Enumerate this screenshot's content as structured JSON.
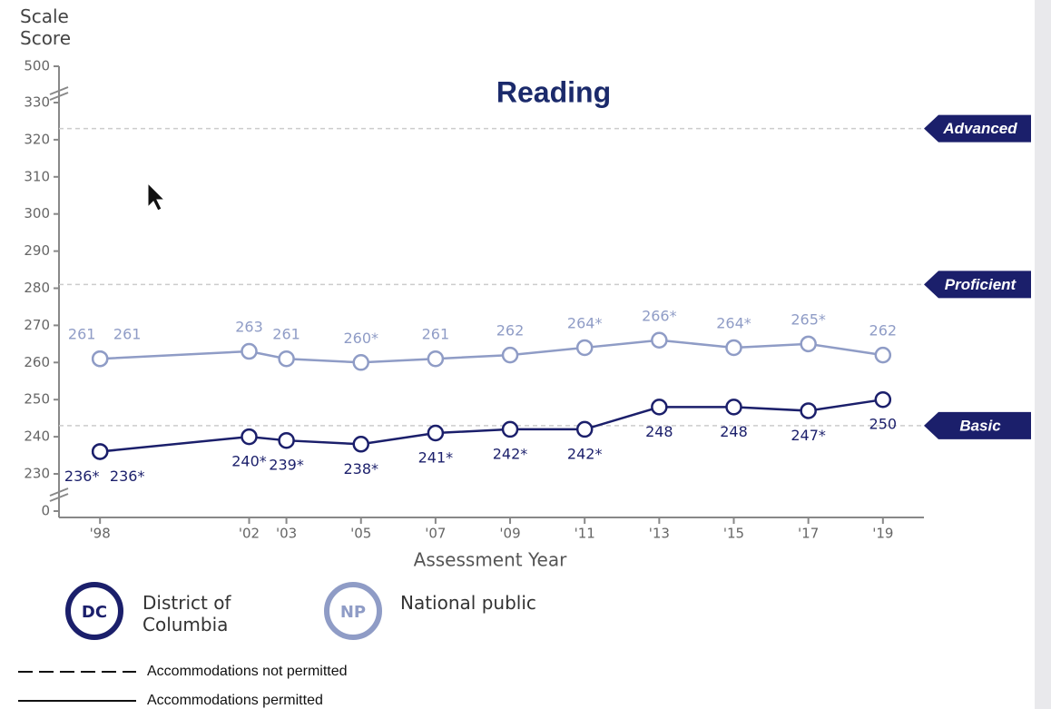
{
  "chart_data": {
    "type": "line",
    "title": "Reading",
    "y_label": "Scale Score",
    "x_label": "Assessment Year",
    "xlim": [
      1996.9,
      2020.1
    ],
    "xticks": [
      {
        "value": 1998,
        "label": "'98"
      },
      {
        "value": 2002,
        "label": "'02"
      },
      {
        "value": 2003,
        "label": "'03"
      },
      {
        "value": 2005,
        "label": "'05"
      },
      {
        "value": 2007,
        "label": "'07"
      },
      {
        "value": 2009,
        "label": "'09"
      },
      {
        "value": 2011,
        "label": "'11"
      },
      {
        "value": 2013,
        "label": "'13"
      },
      {
        "value": 2015,
        "label": "'15"
      },
      {
        "value": 2017,
        "label": "'17"
      },
      {
        "value": 2019,
        "label": "'19"
      }
    ],
    "ylim": [
      0,
      500
    ],
    "yticks": [
      0,
      230,
      240,
      250,
      260,
      270,
      280,
      290,
      300,
      310,
      320,
      330,
      500
    ],
    "x": [
      1998,
      1998,
      2002,
      2003,
      2005,
      2007,
      2009,
      2011,
      2013,
      2015,
      2017,
      2019
    ],
    "series": [
      {
        "name": "District of Columbia",
        "abbr": "DC",
        "color": "#1b1f6b",
        "label_side": "below",
        "values": [
          236,
          236,
          240,
          239,
          238,
          241,
          242,
          242,
          248,
          248,
          247,
          250
        ],
        "value_labels": [
          "236*",
          "236*",
          "240*",
          "239*",
          "238*",
          "241*",
          "242*",
          "242*",
          "248",
          "248",
          "247*",
          "250"
        ]
      },
      {
        "name": "National public",
        "abbr": "NP",
        "color": "#8f9cc6",
        "label_side": "above",
        "values": [
          261,
          261,
          263,
          261,
          260,
          261,
          262,
          264,
          266,
          264,
          265,
          262
        ],
        "value_labels": [
          "261",
          "261",
          "263",
          "261",
          "260*",
          "261",
          "262",
          "264*",
          "266*",
          "264*",
          "265*",
          "262"
        ]
      }
    ],
    "levels": [
      {
        "name": "Advanced",
        "value": 323
      },
      {
        "name": "Proficient",
        "value": 281
      },
      {
        "name": "Basic",
        "value": 243
      }
    ],
    "line_styles": [
      "Accommodations not permitted",
      "Accommodations permitted"
    ]
  }
}
